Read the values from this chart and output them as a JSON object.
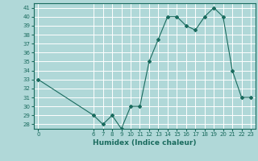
{
  "xlabel": "Humidex (Indice chaleur)",
  "x_values": [
    0,
    6,
    7,
    8,
    9,
    10,
    11,
    12,
    13,
    14,
    15,
    16,
    17,
    18,
    19,
    20,
    21,
    22,
    23
  ],
  "y_values": [
    33,
    29,
    28,
    29,
    27.5,
    30,
    30,
    35,
    37.5,
    40,
    40,
    39,
    38.5,
    40,
    41,
    40,
    34,
    31,
    31
  ],
  "line_color": "#1a6b5e",
  "bg_color": "#b0d8d8",
  "grid_color": "#ffffff",
  "ylim": [
    27.5,
    41.5
  ],
  "yticks": [
    28,
    29,
    30,
    31,
    32,
    33,
    34,
    35,
    36,
    37,
    38,
    39,
    40,
    41
  ],
  "xticks": [
    0,
    6,
    7,
    8,
    9,
    10,
    11,
    12,
    13,
    14,
    15,
    16,
    17,
    18,
    19,
    20,
    21,
    22,
    23
  ],
  "tick_fontsize": 5.0,
  "xlabel_fontsize": 6.5
}
